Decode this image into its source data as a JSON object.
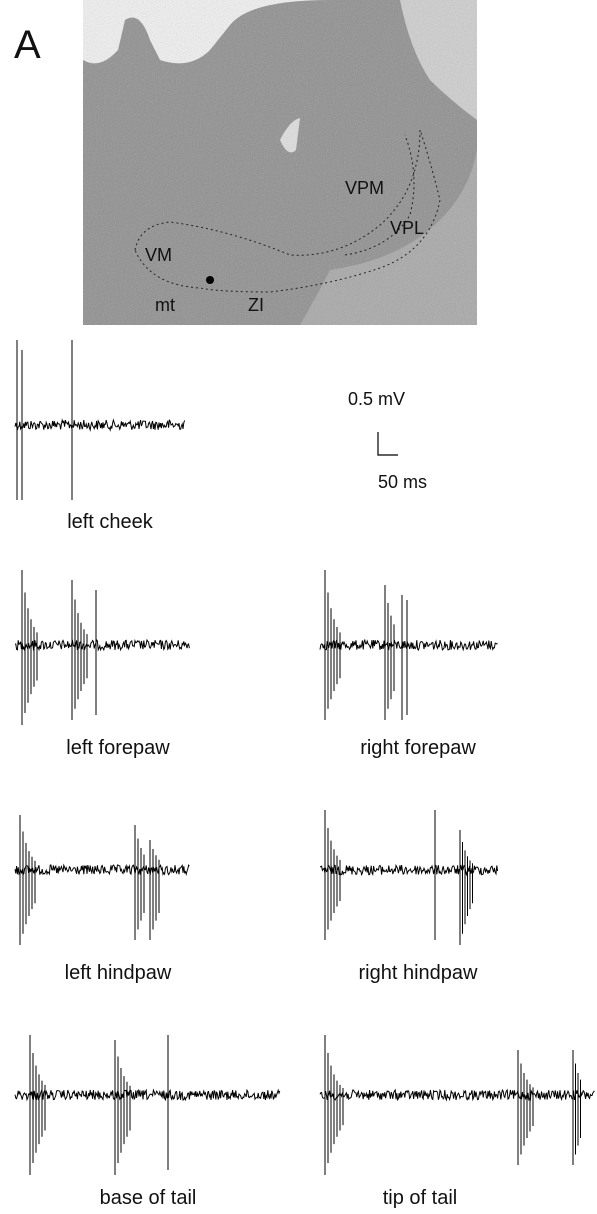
{
  "panel_label": "A",
  "histology": {
    "labels": [
      "VPM",
      "VPL",
      "VM",
      "mt",
      "ZI"
    ]
  },
  "scale_bar": {
    "voltage": "0.5 mV",
    "time": "50 ms"
  },
  "traces": [
    {
      "label": "left cheek"
    },
    {
      "label": "left forepaw"
    },
    {
      "label": "right forepaw"
    },
    {
      "label": "left hindpaw"
    },
    {
      "label": "right hindpaw"
    },
    {
      "label": "base of tail"
    },
    {
      "label": "tip of tail"
    }
  ]
}
